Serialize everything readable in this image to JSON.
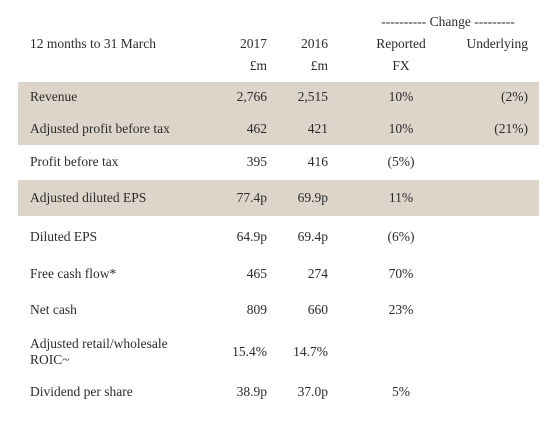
{
  "header": {
    "period": "12 months to 31 March",
    "col2017": "2017",
    "unit2017": "£m",
    "col2016": "2016",
    "unit2016": "£m",
    "change": "---------- Change ---------",
    "reported": "Reported",
    "fx": "FX",
    "underlying": "Underlying"
  },
  "table": {
    "rows": [
      {
        "label": "Revenue",
        "y2017": "2,766",
        "y2016": "2,515",
        "reported": "10%",
        "underlying": "(2%)",
        "shaded": true
      },
      {
        "label": "Adjusted profit before tax",
        "y2017": "462",
        "y2016": "421",
        "reported": "10%",
        "underlying": "(21%)",
        "shaded": true
      },
      {
        "label": "Profit before tax",
        "y2017": "395",
        "y2016": "416",
        "reported": "(5%)",
        "shaded": false
      },
      {
        "label": "Adjusted diluted EPS",
        "y2017": "77.4p",
        "y2016": "69.9p",
        "reported": "11%",
        "shaded": true
      },
      {
        "label": "Diluted EPS",
        "y2017": "64.9p",
        "y2016": "69.4p",
        "reported": "(6%)",
        "shaded": false
      },
      {
        "label": "Free cash flow*",
        "y2017": "465",
        "y2016": "274",
        "reported": "70%",
        "shaded": false
      },
      {
        "label": "Net cash",
        "y2017": "809",
        "y2016": "660",
        "reported": "23%",
        "shaded": false
      },
      {
        "label": "Adjusted retail/wholesale ROIC~",
        "y2017": "15.4%",
        "y2016": "14.7%",
        "shaded": false
      },
      {
        "label": "Dividend per share",
        "y2017": "38.9p",
        "y2016": "37.0p",
        "reported": "5%",
        "shaded": false
      }
    ]
  }
}
